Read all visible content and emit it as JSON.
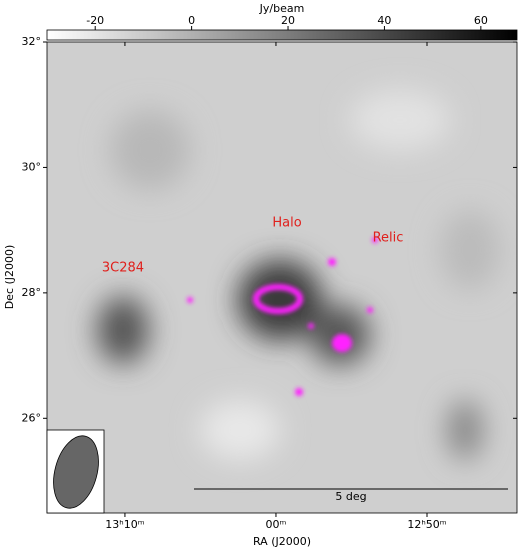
{
  "chart_data": {
    "type": "image",
    "colorbar": {
      "label": "Jy/beam",
      "lim": [
        -30,
        67.5
      ],
      "ticks": [
        -20,
        0,
        20,
        40,
        60
      ]
    },
    "x_label": "RA (J2000)",
    "y_label": "Dec (J2000)",
    "xlim": [
      198.79,
      191.01
    ],
    "xticks": [
      {
        "value": 197.5,
        "label": "13ʰ10ᵐ"
      },
      {
        "value": 195,
        "label": "00ᵐ"
      },
      {
        "value": 192.5,
        "label": "12ʰ50ᵐ"
      }
    ],
    "ylim": [
      24.49,
      32
    ],
    "yticks": [
      {
        "value": 32,
        "label": "32°"
      },
      {
        "value": 30,
        "label": "30°"
      },
      {
        "value": 28,
        "label": "28°"
      },
      {
        "value": 26,
        "label": "26°"
      }
    ],
    "annotations": [
      "Halo",
      "Relic",
      "3C284"
    ],
    "scale_bar": "5 deg",
    "contour_color": "#ff22ff"
  }
}
